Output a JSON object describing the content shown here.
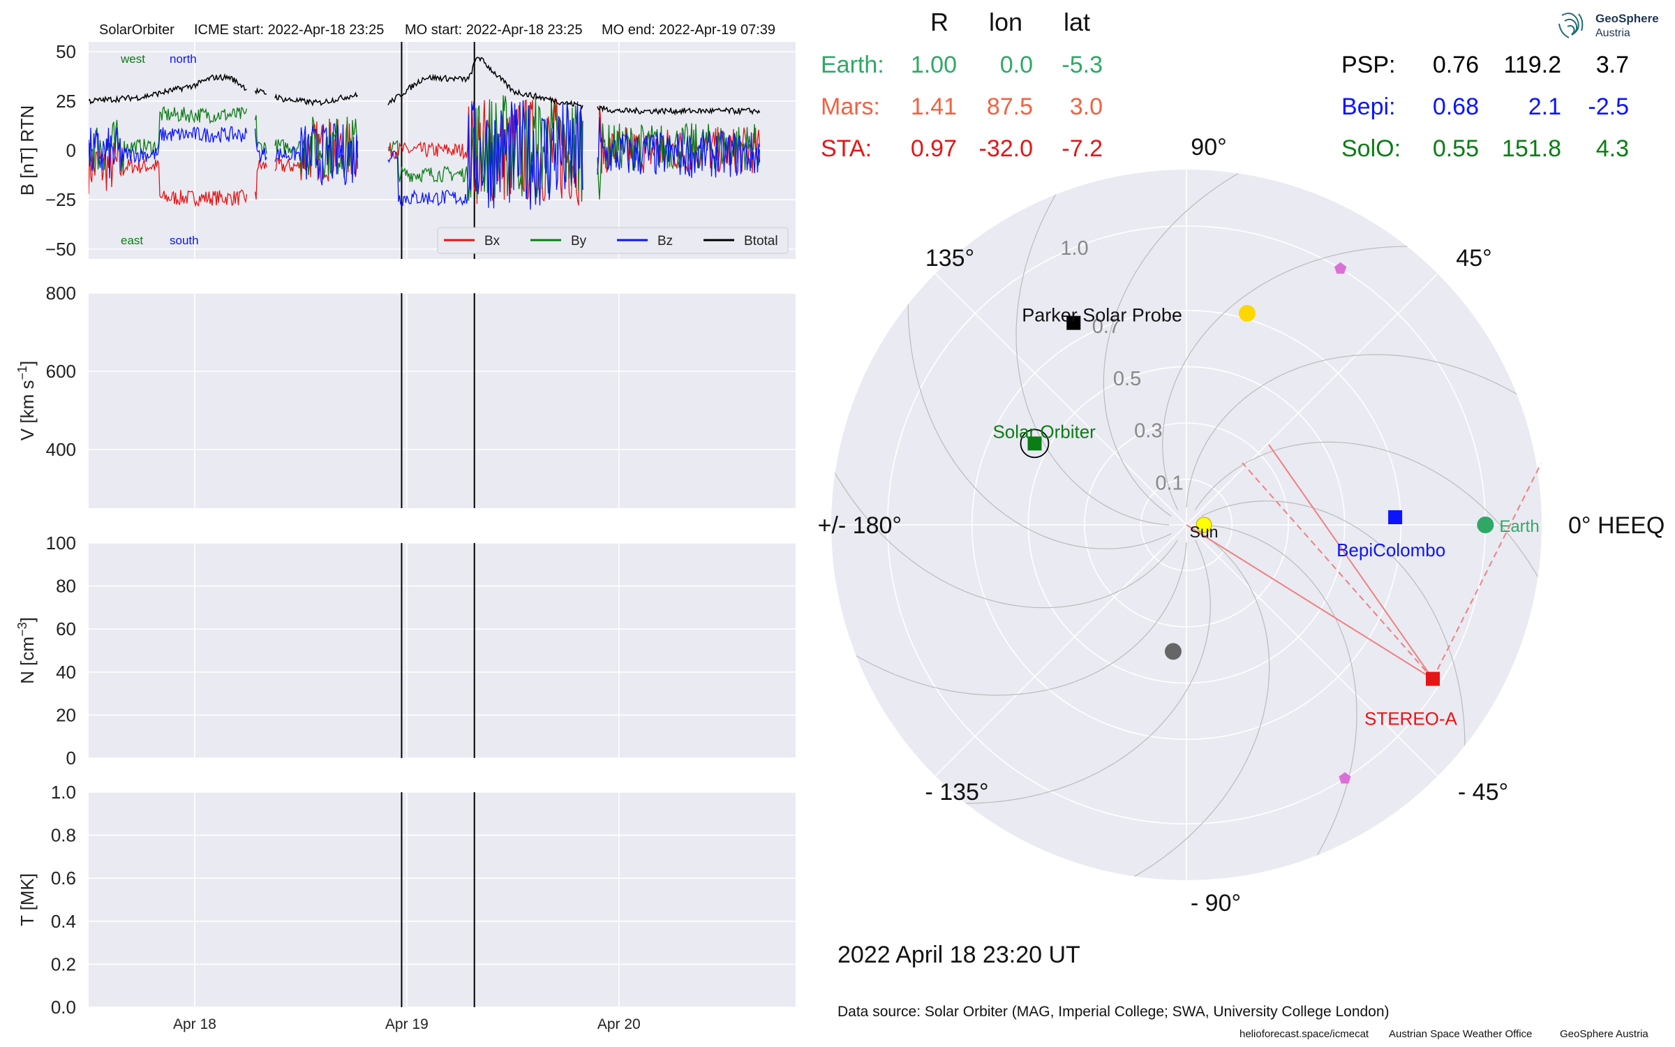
{
  "header": {
    "spacecraft": "SolarOrbiter",
    "icme_start": "ICME start: 2022-Apr-18 23:25",
    "mo_start": "MO start: 2022-Apr-18 23:25",
    "mo_end": "MO end: 2022-Apr-19 07:39"
  },
  "logo": {
    "line1": "GeoSphere",
    "line2": "Austria"
  },
  "date_label": "2022 April 18  23:20 UT",
  "data_source": "Data source: Solar Orbiter (MAG, Imperial College; SWA, University College London)",
  "footer": {
    "site": "helioforecast.space/icmecat",
    "office": "Austrian Space Weather Office",
    "org": "GeoSphere Austria"
  },
  "positions_table": {
    "headers": [
      "R",
      "lon",
      "lat"
    ],
    "left": [
      {
        "name": "Earth:",
        "R": "1.00",
        "lon": "0.0",
        "lat": "-5.3",
        "color": "#2fa866"
      },
      {
        "name": "Mars:",
        "R": "1.41",
        "lon": "87.5",
        "lat": "3.0",
        "color": "#f26241"
      },
      {
        "name": "STA:",
        "R": "0.97",
        "lon": "-32.0",
        "lat": "-7.2",
        "color": "#e61414"
      }
    ],
    "right": [
      {
        "name": "PSP:",
        "R": "0.76",
        "lon": "119.2",
        "lat": "3.7",
        "color": "#000000"
      },
      {
        "name": "Bepi:",
        "R": "0.68",
        "lon": "2.1",
        "lat": "-2.5",
        "color": "#0a14ff"
      },
      {
        "name": "SolO:",
        "R": "0.55",
        "lon": "151.8",
        "lat": "4.3",
        "color": "#0a7d14"
      }
    ]
  },
  "chart_data": [
    {
      "type": "line",
      "panel": "magnetic field",
      "ylabel": "B [nT] RTN",
      "ylim": [
        -55,
        55
      ],
      "yticks": [
        "50",
        "25",
        "0",
        "−25",
        "−50"
      ],
      "x_range": [
        "2022-04-17 12:00",
        "2022-04-20 20:00"
      ],
      "vertical_lines": [
        "2022-04-18 23:25",
        "2022-04-19 07:39"
      ],
      "annotations": [
        {
          "text": "west",
          "color": "#0a7d14"
        },
        {
          "text": "north",
          "color": "#0a14ff"
        },
        {
          "text": "east",
          "color": "#0a7d14"
        },
        {
          "text": "south",
          "color": "#0a14ff"
        }
      ],
      "legend": "bottom-right",
      "series": [
        {
          "name": "Bx",
          "color": "#e61414"
        },
        {
          "name": "By",
          "color": "#0a7d14"
        },
        {
          "name": "Bz",
          "color": "#0a14ff"
        },
        {
          "name": "Btotal",
          "color": "#000000"
        }
      ],
      "btotal_profile": [
        [
          "2022-04-17 12:00",
          25
        ],
        [
          "2022-04-17 18:00",
          27
        ],
        [
          "2022-04-18 00:00",
          33
        ],
        [
          "2022-04-18 02:00",
          37
        ],
        [
          "2022-04-18 04:00",
          37
        ],
        [
          "2022-04-18 06:00",
          31
        ],
        [
          "2022-04-18 08:00",
          29
        ],
        [
          "2022-04-18 10:00",
          26
        ],
        [
          "2022-04-18 14:00",
          24
        ],
        [
          "2022-04-18 18:00",
          28
        ],
        [
          "2022-04-18 22:00",
          24
        ],
        [
          "2022-04-19 02:00",
          37
        ],
        [
          "2022-04-19 07:00",
          36
        ],
        [
          "2022-04-19 08:00",
          48
        ],
        [
          "2022-04-19 12:00",
          30
        ],
        [
          "2022-04-19 18:00",
          24
        ],
        [
          "2022-04-20 00:00",
          20
        ],
        [
          "2022-04-20 12:00",
          20
        ],
        [
          "2022-04-20 16:00",
          20
        ]
      ]
    },
    {
      "type": "line",
      "panel": "speed",
      "ylabel": "V [km s",
      "ylabel_sup": "−1",
      "ylabel_end": "]",
      "ylim": [
        250,
        800
      ],
      "yticks": [
        "800",
        "600",
        "400"
      ],
      "vertical_lines": [
        "2022-04-18 23:25",
        "2022-04-19 07:39"
      ],
      "series": []
    },
    {
      "type": "line",
      "panel": "density",
      "ylabel": "N [cm",
      "ylabel_sup": "−3",
      "ylabel_end": "]",
      "ylim": [
        0,
        100
      ],
      "yticks": [
        "100",
        "80",
        "60",
        "40",
        "20",
        "0"
      ],
      "vertical_lines": [
        "2022-04-18 23:25",
        "2022-04-19 07:39"
      ],
      "series": []
    },
    {
      "type": "line",
      "panel": "temperature",
      "ylabel": "T [MK]",
      "ylim": [
        0,
        1
      ],
      "yticks": [
        "1.0",
        "0.8",
        "0.6",
        "0.4",
        "0.2",
        "0.0"
      ],
      "xticks": [
        "Apr 18",
        "Apr 19",
        "Apr 20"
      ],
      "vertical_lines": [
        "2022-04-18 23:25",
        "2022-04-19 07:39"
      ],
      "series": []
    },
    {
      "type": "scatter",
      "panel": "polar position plot",
      "coordinate_system": "HEEQ",
      "r_ticks": [
        "0.1",
        "0.3",
        "0.5",
        "0.7",
        "1.0"
      ],
      "angle_labels": [
        "90°",
        "45°",
        "0° HEEQ",
        "- 45°",
        "- 90°",
        "- 135°",
        "+/- 180°",
        "135°"
      ],
      "points": [
        {
          "label": "Sun",
          "r": 0.0,
          "lon": 0.0,
          "color": "#ffff00",
          "marker": "circle"
        },
        {
          "label": "Earth",
          "r": 1.0,
          "lon": 0.0,
          "color": "#2fa866",
          "marker": "circle"
        },
        {
          "label": "BepiColombo",
          "r": 0.68,
          "lon": 2.1,
          "color": "#0a14ff",
          "marker": "square"
        },
        {
          "label": "STEREO-A",
          "r": 0.97,
          "lon": -32.0,
          "color": "#e61414",
          "marker": "square"
        },
        {
          "label": "Parker Solar Probe",
          "r": 0.76,
          "lon": 119.2,
          "color": "#000000",
          "marker": "square"
        },
        {
          "label": "Solar Orbiter",
          "r": 0.55,
          "lon": 151.8,
          "color": "#0a7d14",
          "marker": "square"
        },
        {
          "label": "",
          "r": 0.72,
          "lon": 74,
          "color": "#ffd700",
          "marker": "circle"
        },
        {
          "label": "",
          "r": 0.39,
          "lon": -96,
          "color": "#666666",
          "marker": "circle"
        },
        {
          "label": "",
          "r": 1.0,
          "lon": 59,
          "color": "#da70d6",
          "marker": "pentagon"
        },
        {
          "label": "",
          "r": 1.0,
          "lon": -58,
          "color": "#da70d6",
          "marker": "pentagon"
        }
      ]
    }
  ]
}
